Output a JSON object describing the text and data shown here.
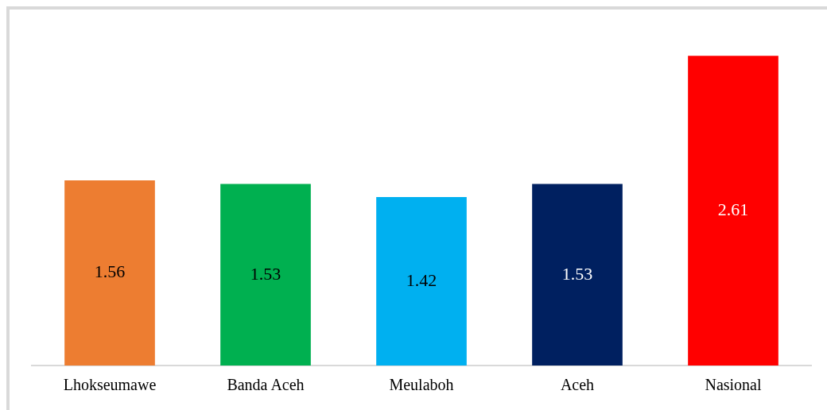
{
  "chart_data": {
    "type": "bar",
    "categories": [
      "Lhokseumawe",
      "Banda Aceh",
      "Meulaboh",
      "Aceh",
      "Nasional"
    ],
    "values": [
      1.56,
      1.53,
      1.42,
      1.53,
      2.61
    ],
    "colors": [
      "#ed7d31",
      "#00b050",
      "#00b0f0",
      "#002060",
      "#ff0000"
    ],
    "ylim": [
      0,
      3
    ],
    "data_labels": true
  }
}
